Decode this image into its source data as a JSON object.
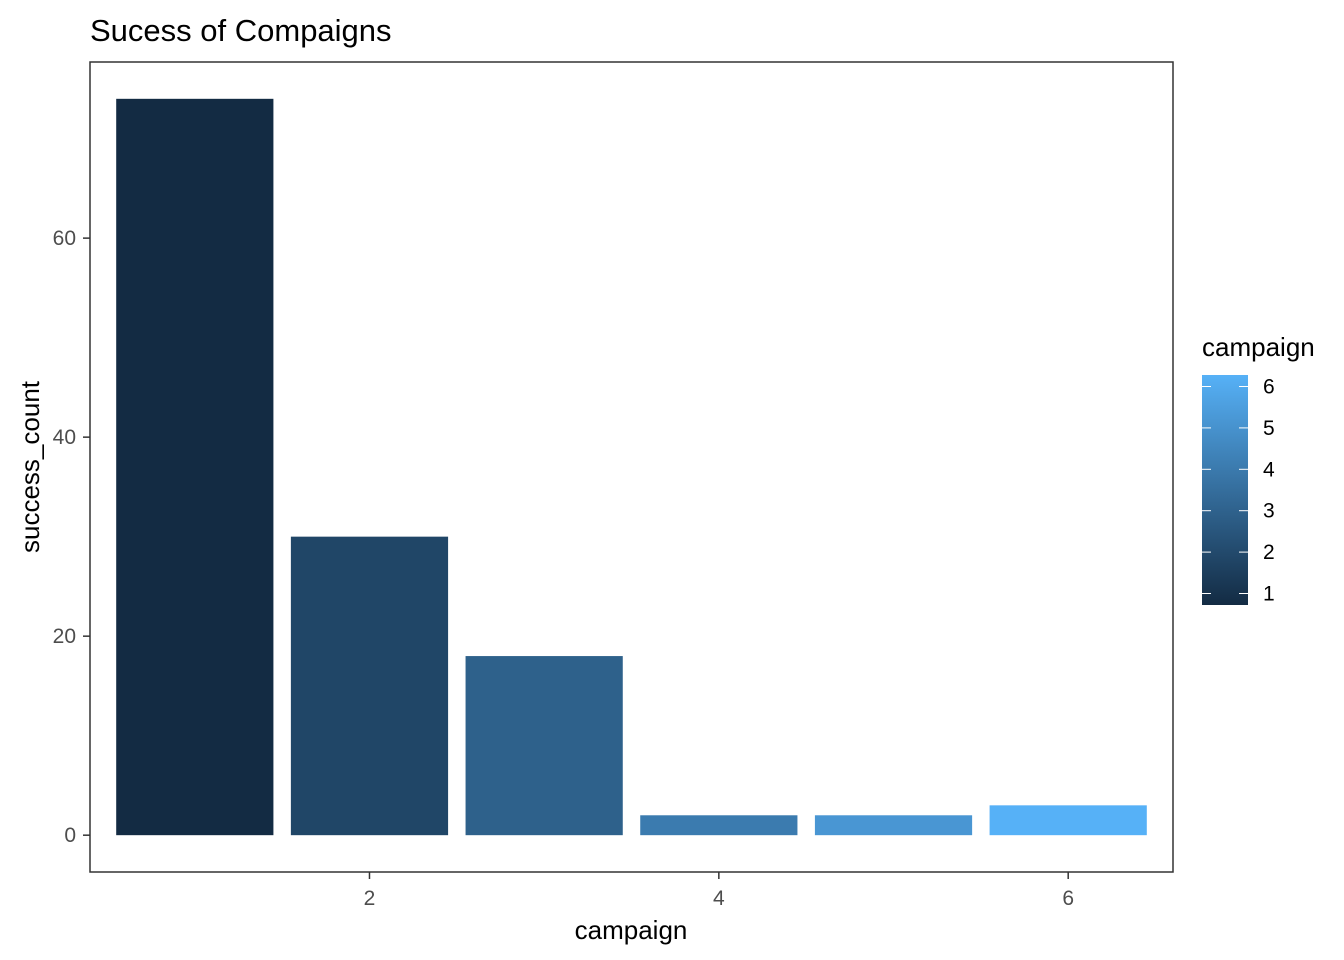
{
  "chart_data": {
    "type": "bar",
    "title": "Sucess of Compaigns",
    "xlabel": "campaign",
    "ylabel": "success_count",
    "x": [
      1,
      2,
      3,
      4,
      5,
      6
    ],
    "values": [
      74,
      30,
      18,
      2,
      2,
      3
    ],
    "xticks": [
      2,
      4,
      6
    ],
    "yticks": [
      0,
      20,
      40,
      60
    ],
    "xlim": [
      0.4,
      6.6
    ],
    "ylim": [
      -3.7,
      77.7
    ],
    "grid": false,
    "fill_scale": {
      "low_color": "#132b43",
      "high_color": "#56b1f7",
      "min": 1,
      "max": 6
    },
    "legend": {
      "title": "campaign",
      "position": "right",
      "labels": [
        "6",
        "5",
        "4",
        "3",
        "2",
        "1"
      ]
    }
  }
}
